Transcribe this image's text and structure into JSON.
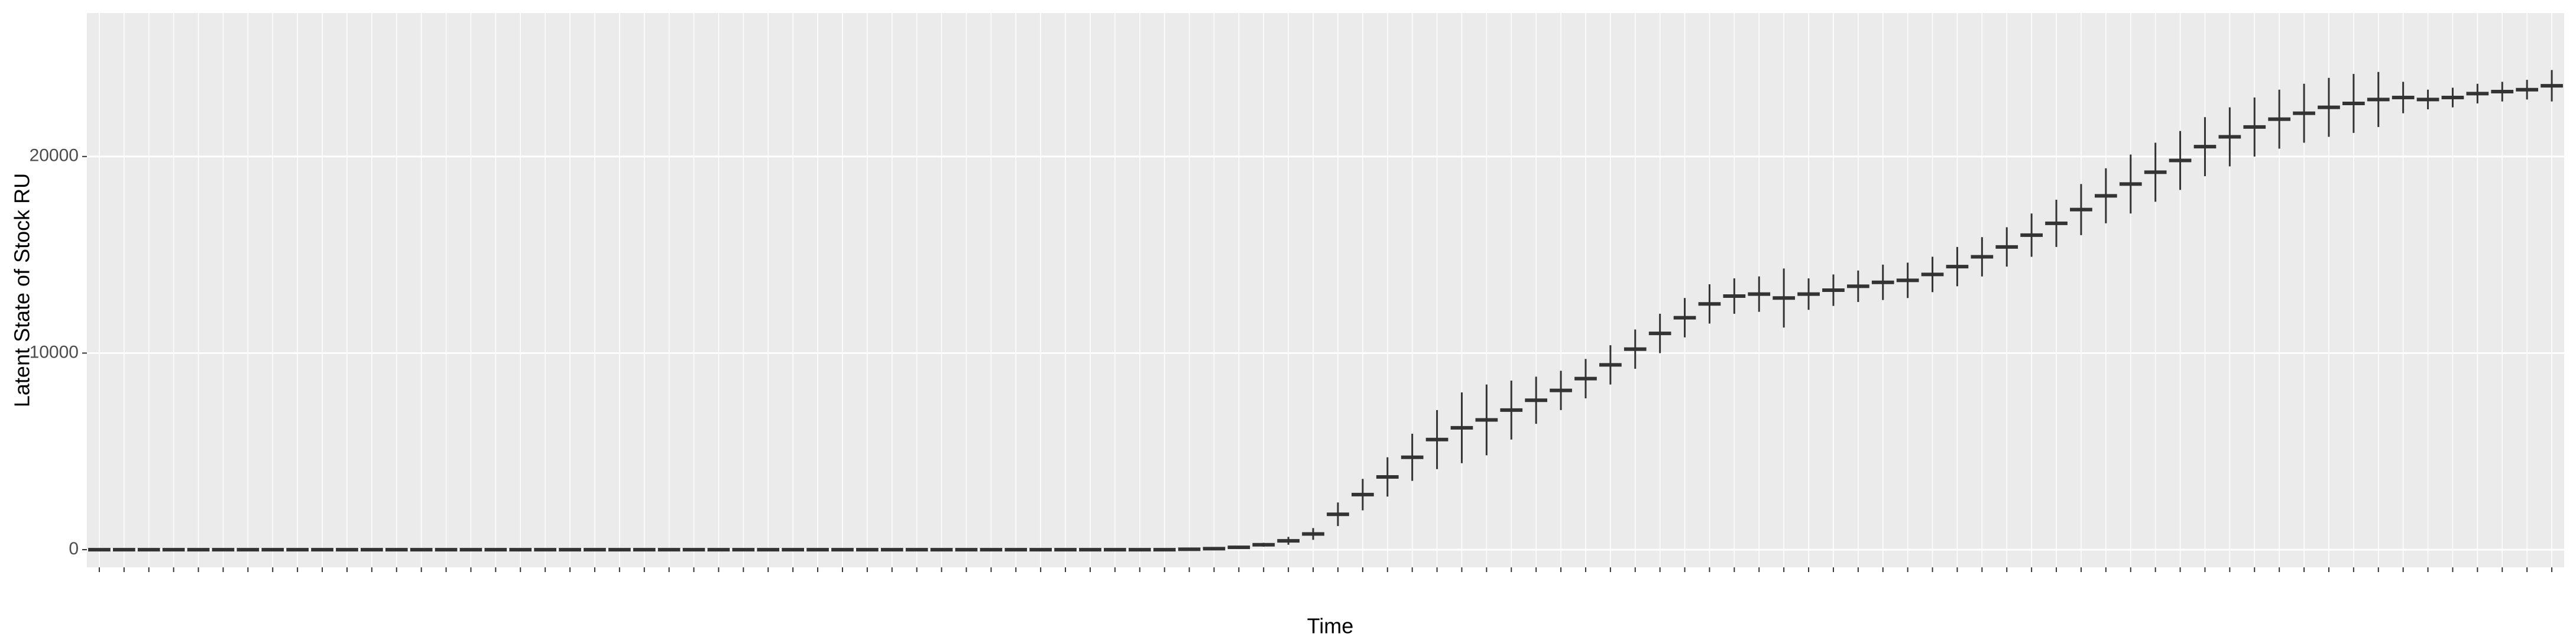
{
  "chart_data": {
    "type": "box",
    "x_label": "Time",
    "y_label": "Latent State of Stock RU",
    "categories": [
      null,
      null,
      null,
      null,
      null,
      null,
      null,
      null,
      null,
      null,
      null,
      null,
      null,
      null,
      null,
      null,
      null,
      null,
      null,
      null,
      null,
      null,
      null,
      null,
      null,
      null,
      null,
      null,
      null,
      null,
      null,
      null,
      null,
      null,
      null,
      null,
      null,
      null,
      null,
      null,
      null,
      null,
      null,
      null,
      null,
      null,
      null,
      null,
      null,
      null,
      null,
      null,
      null,
      null,
      null,
      null,
      null,
      null,
      null,
      null,
      null,
      null,
      null,
      null,
      null,
      null,
      null,
      null,
      null,
      null,
      null,
      null,
      null,
      null,
      null,
      null,
      null,
      null,
      null,
      null,
      null,
      null,
      null,
      null,
      null,
      null,
      null,
      null,
      null,
      null,
      null,
      null,
      null,
      null,
      null,
      null,
      null,
      null,
      null,
      null
    ],
    "median": [
      0,
      0,
      0,
      0,
      0,
      0,
      0,
      0,
      0,
      0,
      0,
      0,
      0,
      0,
      0,
      0,
      0,
      0,
      0,
      0,
      0,
      0,
      0,
      0,
      0,
      0,
      0,
      0,
      0,
      0,
      0,
      0,
      0,
      0,
      0,
      0,
      0,
      0,
      0,
      0,
      0,
      0,
      0,
      0,
      20,
      50,
      120,
      250,
      450,
      800,
      1800,
      2800,
      3700,
      4700,
      5600,
      6200,
      6600,
      7100,
      7600,
      8100,
      8700,
      9400,
      10200,
      11000,
      11800,
      12500,
      12900,
      13000,
      12800,
      13000,
      13200,
      13400,
      13600,
      13700,
      14000,
      14400,
      14900,
      15400,
      16000,
      16600,
      17300,
      18000,
      18600,
      19200,
      19800,
      20500,
      21000,
      21500,
      21900,
      22200,
      22500,
      22700,
      22900,
      23000,
      22900,
      23000,
      23200,
      23300,
      23400,
      23600
    ],
    "low": [
      0,
      0,
      0,
      0,
      0,
      0,
      0,
      0,
      0,
      0,
      0,
      0,
      0,
      0,
      0,
      0,
      0,
      0,
      0,
      0,
      0,
      0,
      0,
      0,
      0,
      0,
      0,
      0,
      0,
      0,
      0,
      0,
      0,
      0,
      0,
      0,
      0,
      0,
      0,
      0,
      0,
      0,
      0,
      0,
      20,
      50,
      70,
      150,
      250,
      500,
      1200,
      2000,
      2700,
      3500,
      4100,
      4400,
      4800,
      5600,
      6400,
      7100,
      7700,
      8400,
      9200,
      10000,
      10800,
      11500,
      12000,
      12100,
      11300,
      12200,
      12400,
      12600,
      12700,
      12800,
      13100,
      13400,
      13900,
      14400,
      14900,
      15400,
      16000,
      16600,
      17100,
      17700,
      18300,
      19000,
      19500,
      20000,
      20400,
      20700,
      21000,
      21200,
      21500,
      22200,
      22400,
      22500,
      22700,
      22800,
      22900,
      22800
    ],
    "high": [
      0,
      0,
      0,
      0,
      0,
      0,
      0,
      0,
      0,
      0,
      0,
      0,
      0,
      0,
      0,
      0,
      0,
      0,
      0,
      0,
      0,
      0,
      0,
      0,
      0,
      0,
      0,
      0,
      0,
      0,
      0,
      0,
      0,
      0,
      0,
      0,
      0,
      0,
      0,
      0,
      0,
      0,
      0,
      0,
      20,
      50,
      170,
      350,
      650,
      1100,
      2400,
      3600,
      4700,
      5900,
      7100,
      8000,
      8400,
      8600,
      8800,
      9100,
      9700,
      10400,
      11200,
      12000,
      12800,
      13500,
      13800,
      13900,
      14300,
      13800,
      14000,
      14200,
      14500,
      14600,
      14900,
      15400,
      15900,
      16400,
      17100,
      17800,
      18600,
      19400,
      20100,
      20700,
      21300,
      22000,
      22500,
      23000,
      23400,
      23700,
      24000,
      24200,
      24300,
      23800,
      23400,
      23500,
      23700,
      23800,
      23900,
      24400
    ],
    "color": "#333333",
    "ylim": [
      -900,
      27300
    ],
    "yticks": [
      0,
      10000,
      20000
    ],
    "grid": true
  }
}
